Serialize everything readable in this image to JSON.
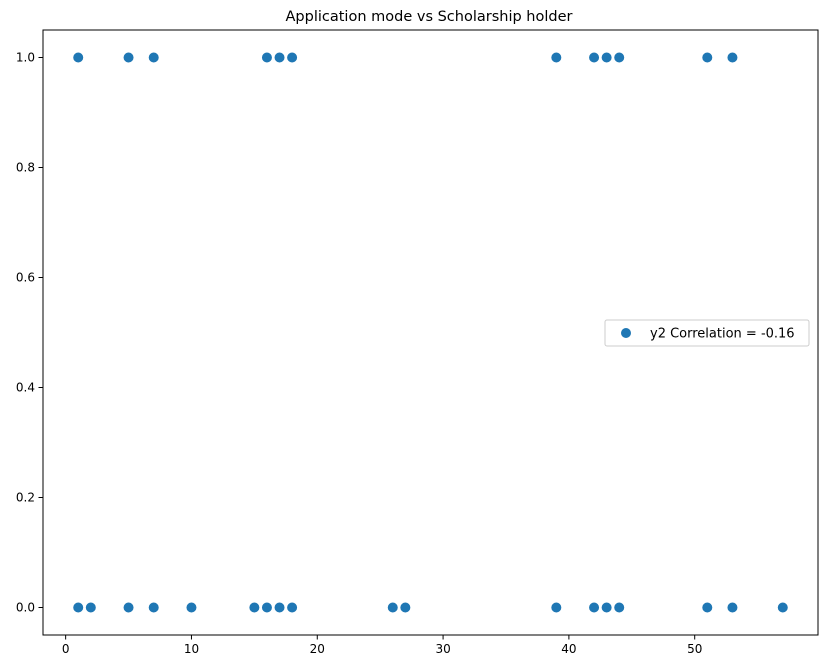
{
  "chart_data": {
    "type": "scatter",
    "title": "Application mode vs Scholarship holder",
    "xlabel": "",
    "ylabel": "",
    "xlim": [
      -1.8,
      59.8
    ],
    "ylim": [
      -0.05,
      1.05
    ],
    "xticks": [
      0,
      10,
      20,
      30,
      40,
      50
    ],
    "xtick_labels": [
      "0",
      "10",
      "20",
      "30",
      "40",
      "50"
    ],
    "yticks": [
      0.0,
      0.2,
      0.4,
      0.6,
      0.8,
      1.0
    ],
    "ytick_labels": [
      "0.0",
      "0.2",
      "0.4",
      "0.6",
      "0.8",
      "1.0"
    ],
    "grid": false,
    "legend": {
      "position": "center-right",
      "entries": [
        "y2 Correlation = -0.16"
      ]
    },
    "series": [
      {
        "name": "y2 Correlation = -0.16",
        "color": "#1f77b4",
        "points": [
          {
            "x": 1,
            "y": 1
          },
          {
            "x": 5,
            "y": 1
          },
          {
            "x": 7,
            "y": 1
          },
          {
            "x": 16,
            "y": 1
          },
          {
            "x": 17,
            "y": 1
          },
          {
            "x": 18,
            "y": 1
          },
          {
            "x": 39,
            "y": 1
          },
          {
            "x": 42,
            "y": 1
          },
          {
            "x": 43,
            "y": 1
          },
          {
            "x": 44,
            "y": 1
          },
          {
            "x": 51,
            "y": 1
          },
          {
            "x": 53,
            "y": 1
          },
          {
            "x": 1,
            "y": 0
          },
          {
            "x": 2,
            "y": 0
          },
          {
            "x": 5,
            "y": 0
          },
          {
            "x": 7,
            "y": 0
          },
          {
            "x": 10,
            "y": 0
          },
          {
            "x": 15,
            "y": 0
          },
          {
            "x": 16,
            "y": 0
          },
          {
            "x": 17,
            "y": 0
          },
          {
            "x": 18,
            "y": 0
          },
          {
            "x": 26,
            "y": 0
          },
          {
            "x": 27,
            "y": 0
          },
          {
            "x": 39,
            "y": 0
          },
          {
            "x": 42,
            "y": 0
          },
          {
            "x": 43,
            "y": 0
          },
          {
            "x": 44,
            "y": 0
          },
          {
            "x": 51,
            "y": 0
          },
          {
            "x": 53,
            "y": 0
          },
          {
            "x": 57,
            "y": 0
          }
        ]
      }
    ]
  }
}
